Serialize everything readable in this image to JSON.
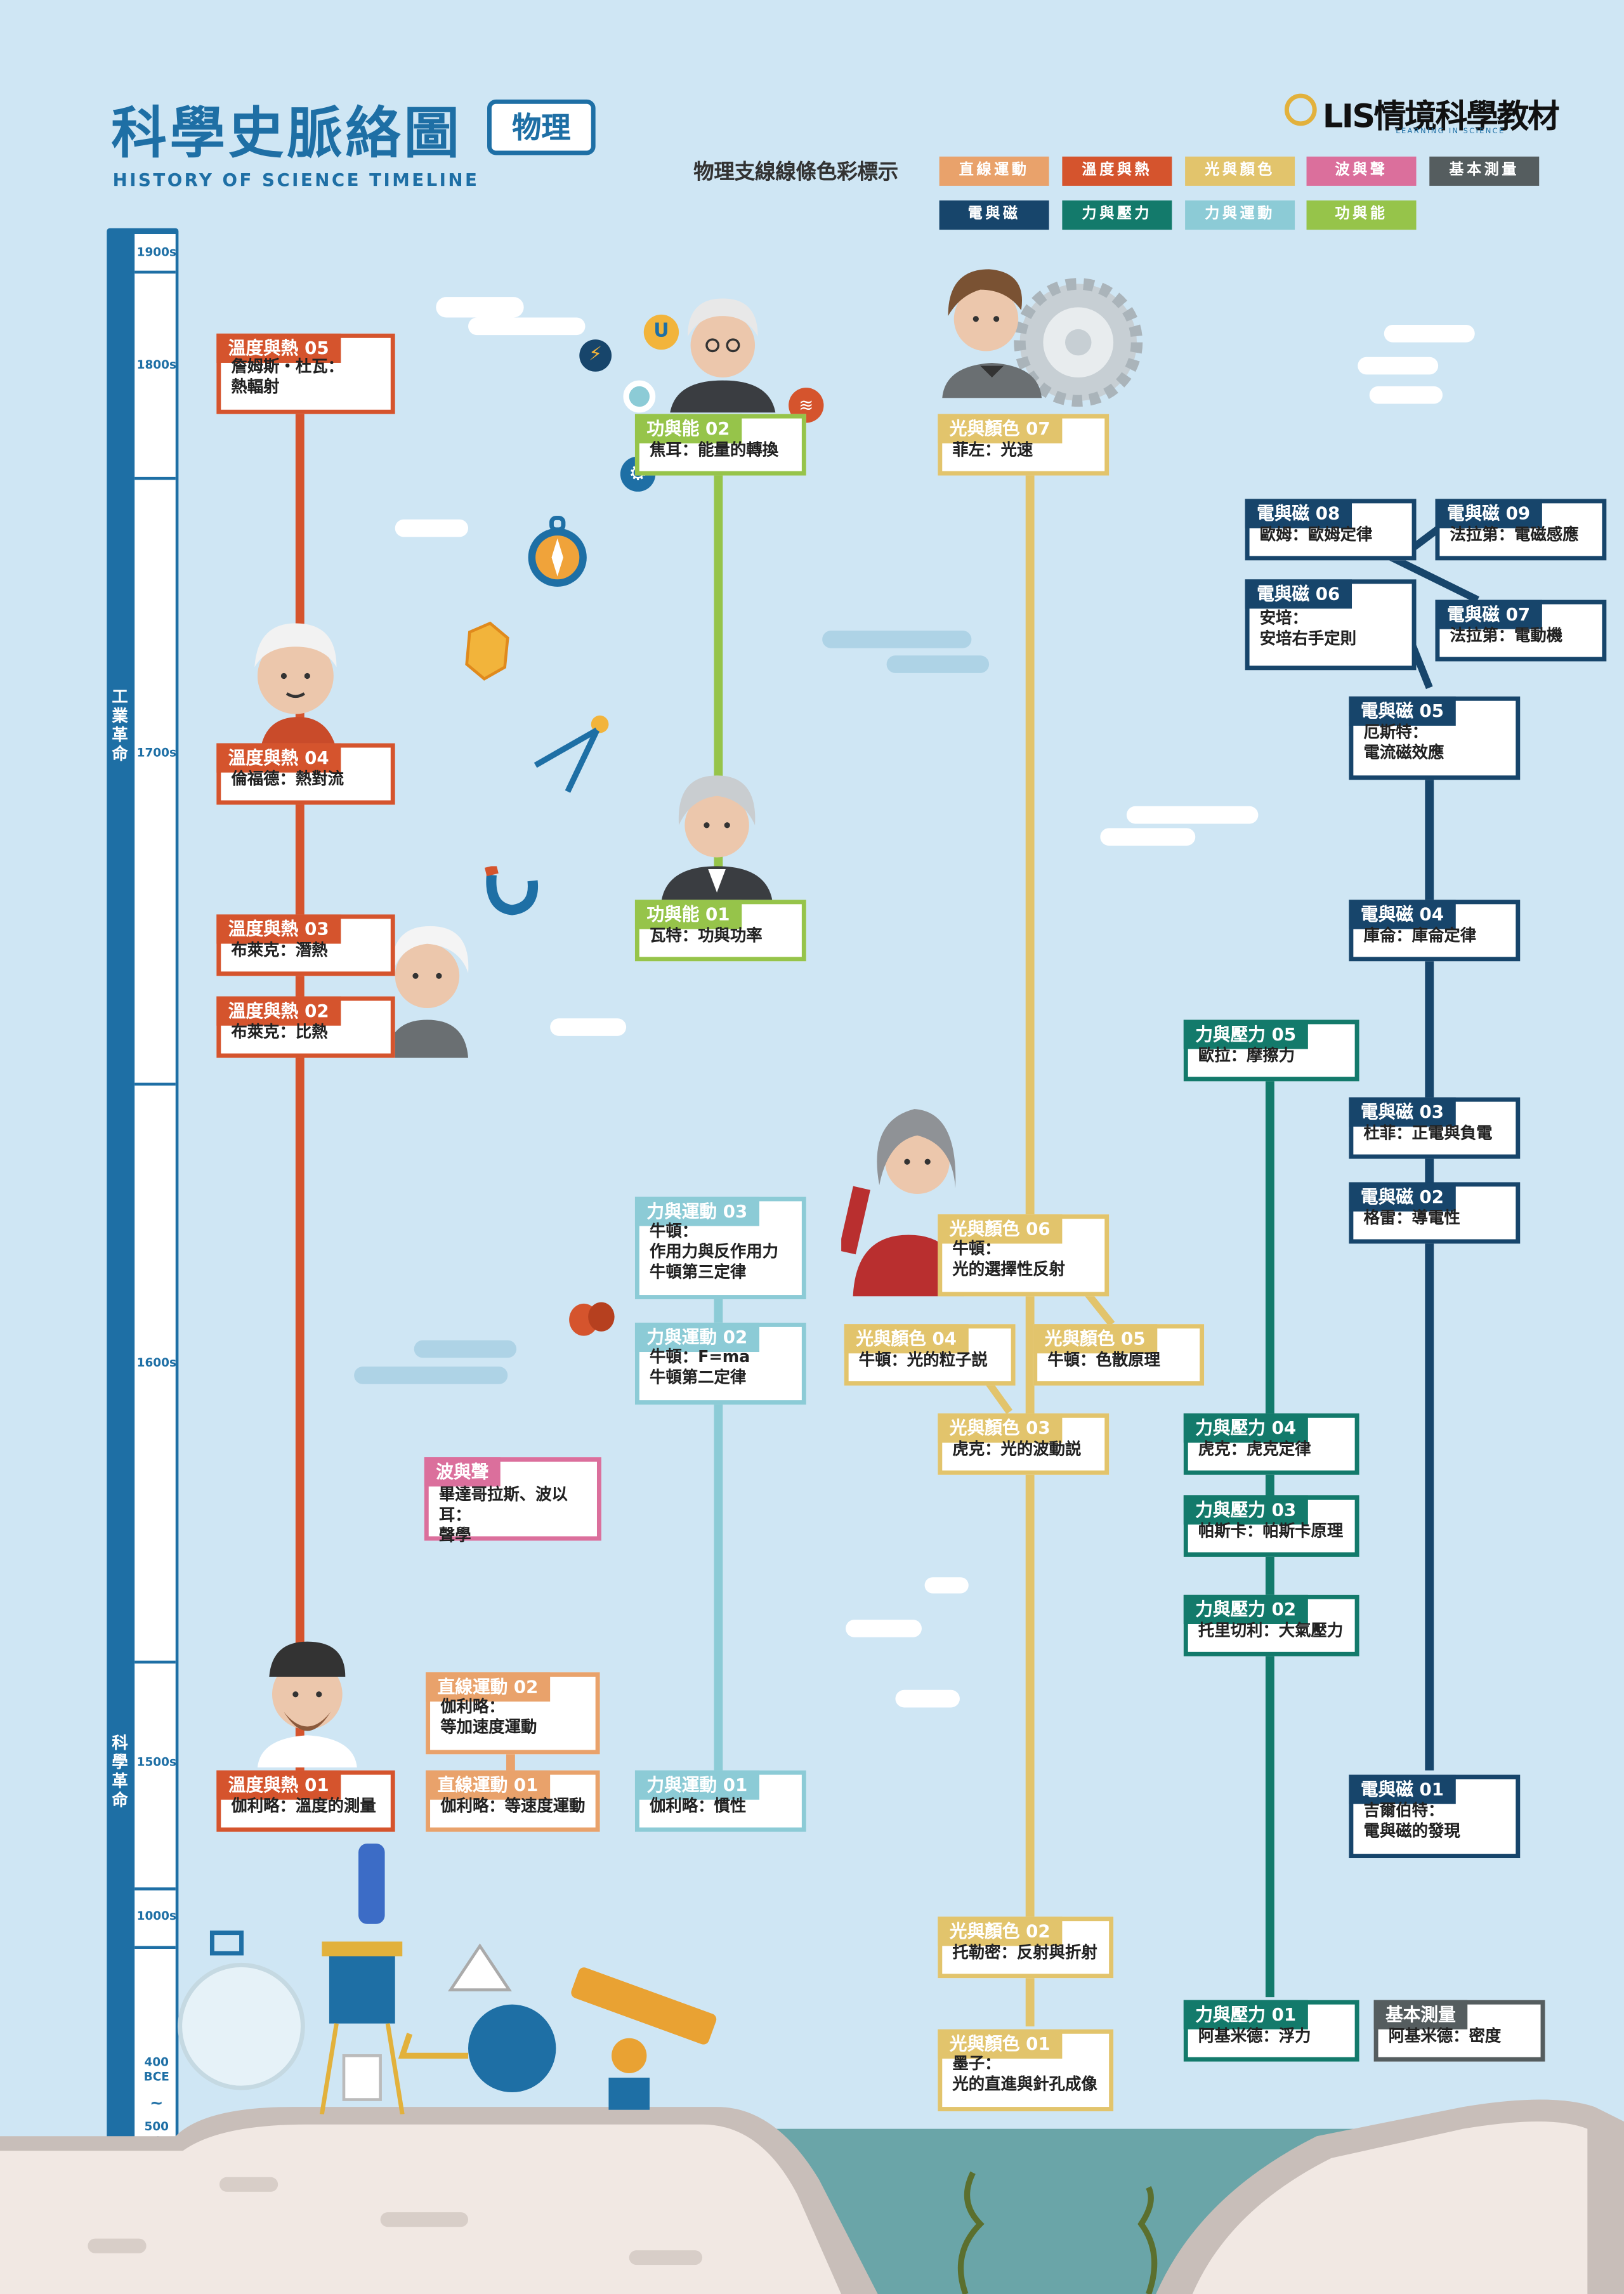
{
  "header": {
    "title": "科學史脈絡圖",
    "tag": "物理",
    "subtitle": "HISTORY OF SCIENCE TIMELINE",
    "logo_text": "LIS情境科學教材",
    "logo_sub": "LEARNING IN SCIENCE"
  },
  "legend": {
    "label": "物理支線線條色彩標示",
    "items": [
      {
        "label": "直線運動",
        "color": "#e9a26b"
      },
      {
        "label": "溫度與熱",
        "color": "#d5542d"
      },
      {
        "label": "光與顏色",
        "color": "#e2c46c"
      },
      {
        "label": "波與聲",
        "color": "#db6f9c"
      },
      {
        "label": "基本測量",
        "color": "#555d5f"
      },
      {
        "label": "電與磁",
        "color": "#17456b"
      },
      {
        "label": "力與壓力",
        "color": "#137a6b"
      },
      {
        "label": "力與運動",
        "color": "#8ccbd6"
      },
      {
        "label": "功與能",
        "color": "#96c44a"
      }
    ]
  },
  "timeline": {
    "eras": [
      "1900s",
      "1800s",
      "1700s",
      "1600s",
      "1500s",
      "1000s",
      "400 BCE",
      "~",
      "500 BCE"
    ],
    "revolutions": [
      "工業革命",
      "科學革命"
    ]
  },
  "cards": {
    "heat05": {
      "tag": "溫度與熱 05",
      "text": "詹姆斯・杜瓦：\n熱輻射"
    },
    "heat04": {
      "tag": "溫度與熱 04",
      "text": "倫福德：熱對流"
    },
    "heat03": {
      "tag": "溫度與熱 03",
      "text": "布萊克：潛熱"
    },
    "heat02": {
      "tag": "溫度與熱 02",
      "text": "布萊克：比熱"
    },
    "heat01": {
      "tag": "溫度與熱 01",
      "text": "伽利略：溫度的測量"
    },
    "work02": {
      "tag": "功與能 02",
      "text": "焦耳：能量的轉換"
    },
    "work01": {
      "tag": "功與能 01",
      "text": "瓦特：功與功率"
    },
    "motion03": {
      "tag": "力與運動 03",
      "text": "牛頓：\n作用力與反作用力\n牛頓第三定律"
    },
    "motion02": {
      "tag": "力與運動 02",
      "text": "牛頓：F=ma\n牛頓第二定律"
    },
    "motion01": {
      "tag": "力與運動 01",
      "text": "伽利略：慣性"
    },
    "wave": {
      "tag": "波與聲",
      "text": "畢達哥拉斯、波以耳：\n聲學"
    },
    "linear02": {
      "tag": "直線運動 02",
      "text": "伽利略：\n等加速度運動"
    },
    "linear01": {
      "tag": "直線運動 01",
      "text": "伽利略：等速度運動"
    },
    "light07": {
      "tag": "光與顏色 07",
      "text": "菲左：光速"
    },
    "light06": {
      "tag": "光與顏色 06",
      "text": "牛頓：\n光的選擇性反射"
    },
    "light05": {
      "tag": "光與顏色 05",
      "text": "牛頓：色散原理"
    },
    "light04": {
      "tag": "光與顏色 04",
      "text": "牛頓：光的粒子説"
    },
    "light03": {
      "tag": "光與顏色 03",
      "text": "虎克：光的波動説"
    },
    "light02": {
      "tag": "光與顏色 02",
      "text": "托勒密：反射與折射"
    },
    "light01": {
      "tag": "光與顏色 01",
      "text": "墨子：\n光的直進與針孔成像"
    },
    "force05": {
      "tag": "力與壓力 05",
      "text": "歐拉：摩擦力"
    },
    "force04": {
      "tag": "力與壓力 04",
      "text": "虎克：虎克定律"
    },
    "force03": {
      "tag": "力與壓力 03",
      "text": "帕斯卡：帕斯卡原理"
    },
    "force02": {
      "tag": "力與壓力 02",
      "text": "托里切利：大氣壓力"
    },
    "force01": {
      "tag": "力與壓力 01",
      "text": "阿基米德：浮力"
    },
    "measure": {
      "tag": "基本測量",
      "text": "阿基米德：密度"
    },
    "em09": {
      "tag": "電與磁 09",
      "text": "法拉第：電磁感應"
    },
    "em08": {
      "tag": "電與磁 08",
      "text": "歐姆：歐姆定律"
    },
    "em07": {
      "tag": "電與磁 07",
      "text": "法拉第：電動機"
    },
    "em06": {
      "tag": "電與磁 06",
      "text": "安培：\n安培右手定則"
    },
    "em05": {
      "tag": "電與磁 05",
      "text": "厄斯特：\n電流磁效應"
    },
    "em04": {
      "tag": "電與磁 04",
      "text": "庫侖：庫侖定律"
    },
    "em03": {
      "tag": "電與磁 03",
      "text": "杜菲：正電與負電"
    },
    "em02": {
      "tag": "電與磁 02",
      "text": "格雷：導電性"
    },
    "em01": {
      "tag": "電與磁 01",
      "text": "吉爾伯特：\n電與磁的發現"
    }
  }
}
